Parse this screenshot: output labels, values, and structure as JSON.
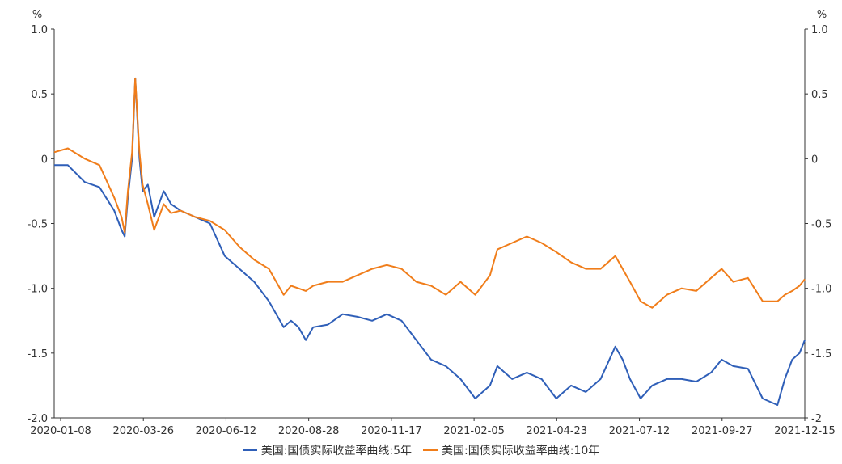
{
  "chart_data": {
    "type": "line",
    "left_axis_unit": "%",
    "right_axis_unit": "%",
    "y_range": [
      -2.0,
      1.0
    ],
    "left_ticks": [
      "1.0",
      "0.5",
      "0",
      "-0.5",
      "-1.0",
      "-1.5",
      "-2.0"
    ],
    "right_ticks": [
      "1.0",
      "0.5",
      "0",
      "-0.5",
      "-1.0",
      "-1.5",
      "-2"
    ],
    "x_ticks": [
      "2020-01-08",
      "2020-03-26",
      "2020-06-12",
      "2020-08-28",
      "2020-11-17",
      "2021-02-05",
      "2021-04-23",
      "2021-07-12",
      "2021-09-27",
      "2021-12-15"
    ],
    "x_range": [
      "2020-01-02",
      "2021-12-15"
    ],
    "grid": false,
    "legend_position": "bottom",
    "series": [
      {
        "name": "美国:国债实际收益率曲线:5年",
        "color": "#2f5fb8",
        "points": [
          [
            "2020-01-02",
            -0.05
          ],
          [
            "2020-01-15",
            -0.05
          ],
          [
            "2020-01-31",
            -0.18
          ],
          [
            "2020-02-14",
            -0.22
          ],
          [
            "2020-02-28",
            -0.4
          ],
          [
            "2020-03-06",
            -0.55
          ],
          [
            "2020-03-09",
            -0.6
          ],
          [
            "2020-03-12",
            -0.3
          ],
          [
            "2020-03-16",
            0.0
          ],
          [
            "2020-03-19",
            0.62
          ],
          [
            "2020-03-23",
            0.0
          ],
          [
            "2020-03-26",
            -0.25
          ],
          [
            "2020-03-31",
            -0.2
          ],
          [
            "2020-04-06",
            -0.45
          ],
          [
            "2020-04-15",
            -0.25
          ],
          [
            "2020-04-22",
            -0.35
          ],
          [
            "2020-05-01",
            -0.4
          ],
          [
            "2020-05-15",
            -0.45
          ],
          [
            "2020-05-29",
            -0.5
          ],
          [
            "2020-06-12",
            -0.75
          ],
          [
            "2020-06-26",
            -0.85
          ],
          [
            "2020-07-10",
            -0.95
          ],
          [
            "2020-07-24",
            -1.1
          ],
          [
            "2020-08-07",
            -1.3
          ],
          [
            "2020-08-14",
            -1.25
          ],
          [
            "2020-08-21",
            -1.3
          ],
          [
            "2020-08-28",
            -1.4
          ],
          [
            "2020-09-04",
            -1.3
          ],
          [
            "2020-09-18",
            -1.28
          ],
          [
            "2020-10-02",
            -1.2
          ],
          [
            "2020-10-16",
            -1.22
          ],
          [
            "2020-10-30",
            -1.25
          ],
          [
            "2020-11-13",
            -1.2
          ],
          [
            "2020-11-27",
            -1.25
          ],
          [
            "2020-12-11",
            -1.4
          ],
          [
            "2020-12-25",
            -1.55
          ],
          [
            "2021-01-08",
            -1.6
          ],
          [
            "2021-01-22",
            -1.7
          ],
          [
            "2021-02-05",
            -1.85
          ],
          [
            "2021-02-19",
            -1.75
          ],
          [
            "2021-02-26",
            -1.6
          ],
          [
            "2021-03-12",
            -1.7
          ],
          [
            "2021-03-26",
            -1.65
          ],
          [
            "2021-04-09",
            -1.7
          ],
          [
            "2021-04-23",
            -1.85
          ],
          [
            "2021-05-07",
            -1.75
          ],
          [
            "2021-05-21",
            -1.8
          ],
          [
            "2021-06-04",
            -1.7
          ],
          [
            "2021-06-18",
            -1.45
          ],
          [
            "2021-06-25",
            -1.55
          ],
          [
            "2021-07-02",
            -1.7
          ],
          [
            "2021-07-12",
            -1.85
          ],
          [
            "2021-07-23",
            -1.75
          ],
          [
            "2021-08-06",
            -1.7
          ],
          [
            "2021-08-20",
            -1.7
          ],
          [
            "2021-09-03",
            -1.72
          ],
          [
            "2021-09-17",
            -1.65
          ],
          [
            "2021-09-27",
            -1.55
          ],
          [
            "2021-10-08",
            -1.6
          ],
          [
            "2021-10-22",
            -1.62
          ],
          [
            "2021-11-05",
            -1.85
          ],
          [
            "2021-11-19",
            -1.9
          ],
          [
            "2021-11-26",
            -1.7
          ],
          [
            "2021-12-03",
            -1.55
          ],
          [
            "2021-12-10",
            -1.5
          ],
          [
            "2021-12-15",
            -1.4
          ]
        ]
      },
      {
        "name": "美国:国债实际收益率曲线:10年",
        "color": "#f07d1a",
        "points": [
          [
            "2020-01-02",
            0.05
          ],
          [
            "2020-01-15",
            0.08
          ],
          [
            "2020-01-31",
            0.0
          ],
          [
            "2020-02-14",
            -0.05
          ],
          [
            "2020-02-28",
            -0.3
          ],
          [
            "2020-03-06",
            -0.45
          ],
          [
            "2020-03-09",
            -0.57
          ],
          [
            "2020-03-12",
            -0.25
          ],
          [
            "2020-03-16",
            0.05
          ],
          [
            "2020-03-19",
            0.62
          ],
          [
            "2020-03-23",
            0.05
          ],
          [
            "2020-03-26",
            -0.2
          ],
          [
            "2020-03-31",
            -0.35
          ],
          [
            "2020-04-06",
            -0.55
          ],
          [
            "2020-04-15",
            -0.35
          ],
          [
            "2020-04-22",
            -0.42
          ],
          [
            "2020-05-01",
            -0.4
          ],
          [
            "2020-05-15",
            -0.45
          ],
          [
            "2020-05-29",
            -0.48
          ],
          [
            "2020-06-12",
            -0.55
          ],
          [
            "2020-06-26",
            -0.68
          ],
          [
            "2020-07-10",
            -0.78
          ],
          [
            "2020-07-24",
            -0.85
          ],
          [
            "2020-08-07",
            -1.05
          ],
          [
            "2020-08-14",
            -0.98
          ],
          [
            "2020-08-21",
            -1.0
          ],
          [
            "2020-08-28",
            -1.02
          ],
          [
            "2020-09-04",
            -0.98
          ],
          [
            "2020-09-18",
            -0.95
          ],
          [
            "2020-10-02",
            -0.95
          ],
          [
            "2020-10-16",
            -0.9
          ],
          [
            "2020-10-30",
            -0.85
          ],
          [
            "2020-11-13",
            -0.82
          ],
          [
            "2020-11-27",
            -0.85
          ],
          [
            "2020-12-11",
            -0.95
          ],
          [
            "2020-12-25",
            -0.98
          ],
          [
            "2021-01-08",
            -1.05
          ],
          [
            "2021-01-22",
            -0.95
          ],
          [
            "2021-02-05",
            -1.05
          ],
          [
            "2021-02-19",
            -0.9
          ],
          [
            "2021-02-26",
            -0.7
          ],
          [
            "2021-03-12",
            -0.65
          ],
          [
            "2021-03-26",
            -0.6
          ],
          [
            "2021-04-09",
            -0.65
          ],
          [
            "2021-04-23",
            -0.72
          ],
          [
            "2021-05-07",
            -0.8
          ],
          [
            "2021-05-21",
            -0.85
          ],
          [
            "2021-06-04",
            -0.85
          ],
          [
            "2021-06-18",
            -0.75
          ],
          [
            "2021-06-25",
            -0.85
          ],
          [
            "2021-07-02",
            -0.95
          ],
          [
            "2021-07-12",
            -1.1
          ],
          [
            "2021-07-23",
            -1.15
          ],
          [
            "2021-08-06",
            -1.05
          ],
          [
            "2021-08-20",
            -1.0
          ],
          [
            "2021-09-03",
            -1.02
          ],
          [
            "2021-09-17",
            -0.92
          ],
          [
            "2021-09-27",
            -0.85
          ],
          [
            "2021-10-08",
            -0.95
          ],
          [
            "2021-10-22",
            -0.92
          ],
          [
            "2021-11-05",
            -1.1
          ],
          [
            "2021-11-19",
            -1.1
          ],
          [
            "2021-11-26",
            -1.05
          ],
          [
            "2021-12-03",
            -1.02
          ],
          [
            "2021-12-10",
            -0.98
          ],
          [
            "2021-12-15",
            -0.93
          ]
        ]
      }
    ]
  }
}
